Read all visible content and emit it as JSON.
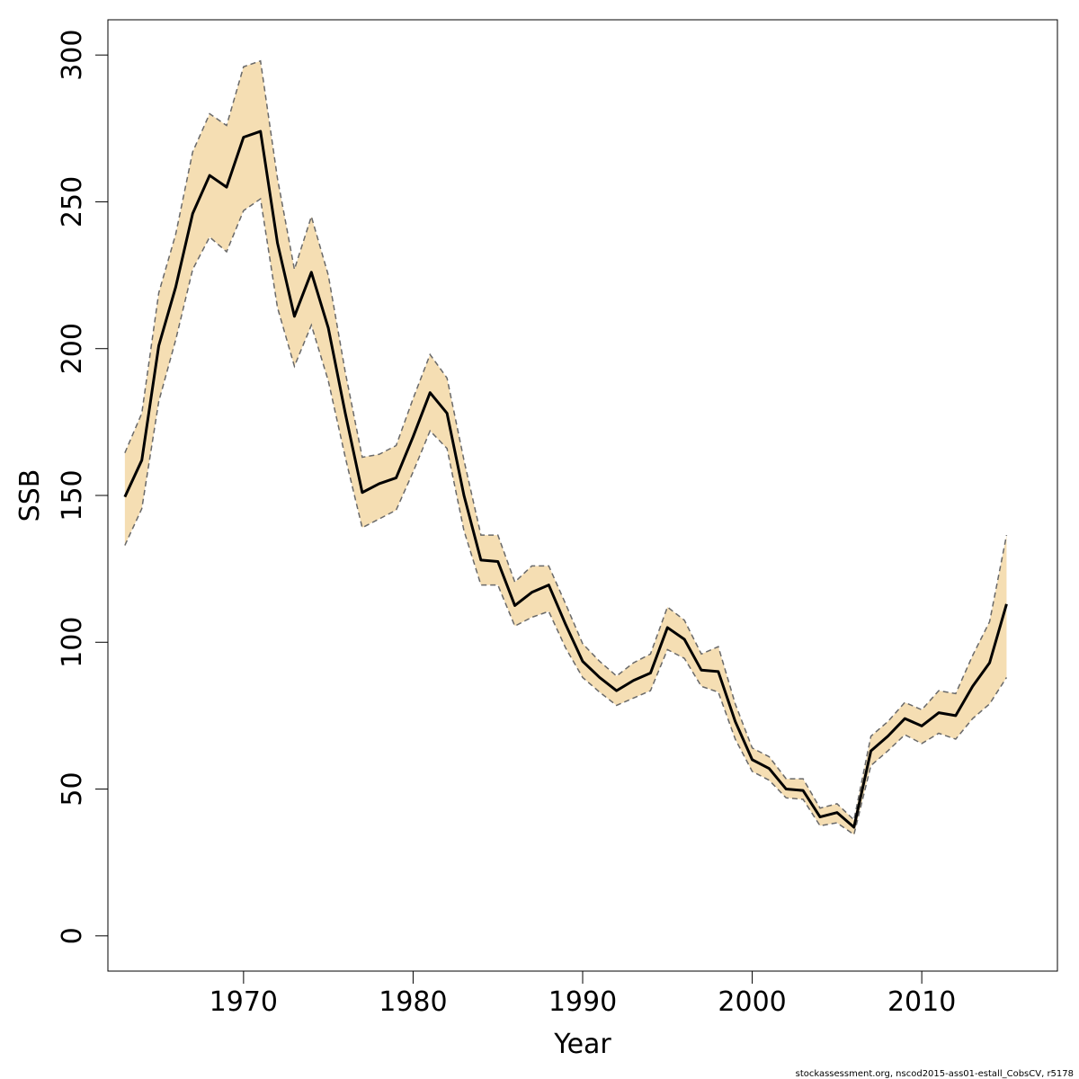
{
  "chart_data": {
    "type": "line",
    "title": "",
    "xlabel": "Year",
    "ylabel": "SSB",
    "xlim": [
      1962,
      2018
    ],
    "ylim": [
      -12,
      312
    ],
    "x_ticks": [
      1970,
      1980,
      1990,
      2000,
      2010
    ],
    "y_ticks": [
      0,
      50,
      100,
      150,
      200,
      250,
      300
    ],
    "grid": false,
    "legend": "none",
    "colors": {
      "band": "#F5DEB3",
      "line": "#000000",
      "bounds": "#696969"
    },
    "x": [
      1963,
      1964,
      1965,
      1966,
      1967,
      1968,
      1969,
      1970,
      1971,
      1972,
      1973,
      1974,
      1975,
      1976,
      1977,
      1978,
      1979,
      1980,
      1981,
      1982,
      1983,
      1984,
      1985,
      1986,
      1987,
      1988,
      1989,
      1990,
      1991,
      1992,
      1993,
      1994,
      1995,
      1996,
      1997,
      1998,
      1999,
      2000,
      2001,
      2002,
      2003,
      2004,
      2005,
      2006,
      2007,
      2008,
      2009,
      2010,
      2011,
      2012,
      2013,
      2014,
      2015
    ],
    "series": [
      {
        "role": "estimate",
        "values": [
          149.5,
          162,
          201,
          221,
          246,
          259,
          255,
          272,
          274,
          236,
          211,
          226,
          207,
          178,
          151,
          154,
          156,
          170,
          185,
          178,
          150,
          128,
          127.5,
          112.5,
          117,
          119.5,
          106,
          93.5,
          88,
          83.5,
          87,
          89.5,
          105,
          101,
          90.5,
          90,
          73,
          60,
          57,
          50,
          49.5,
          40.5,
          42,
          37,
          63,
          68,
          74,
          71.5,
          76,
          75,
          85,
          93,
          113
        ]
      },
      {
        "role": "lower",
        "values": [
          133,
          145.5,
          182,
          203,
          227,
          238,
          233,
          247,
          251,
          214,
          194,
          208,
          189,
          163,
          139,
          142,
          145,
          158,
          172,
          166,
          138,
          119.5,
          119.5,
          105.5,
          108.5,
          110.5,
          98,
          88,
          83,
          78.5,
          81,
          83.5,
          97.5,
          94.5,
          85,
          83,
          67,
          56,
          53,
          47,
          46.5,
          37.5,
          38.5,
          34.5,
          58,
          63,
          68.5,
          65.5,
          69,
          67,
          74,
          79,
          88
        ]
      },
      {
        "role": "upper",
        "values": [
          164.5,
          178,
          219,
          239,
          267,
          280,
          276,
          296,
          298,
          258,
          227,
          245,
          225,
          192,
          163,
          164,
          167,
          183,
          198,
          190,
          162,
          136.5,
          136.5,
          120.5,
          126,
          126,
          113,
          99.5,
          93.5,
          88.5,
          93,
          96,
          112,
          107.5,
          96,
          98.5,
          79,
          64,
          61,
          53.5,
          53.5,
          43.5,
          45,
          39.5,
          68,
          73,
          79.5,
          77,
          83.5,
          82.5,
          95.5,
          107,
          136.5
        ]
      }
    ]
  },
  "footer": {
    "note": "stockassessment.org, nscod2015-ass01-estall_CobsCV, r5178"
  }
}
